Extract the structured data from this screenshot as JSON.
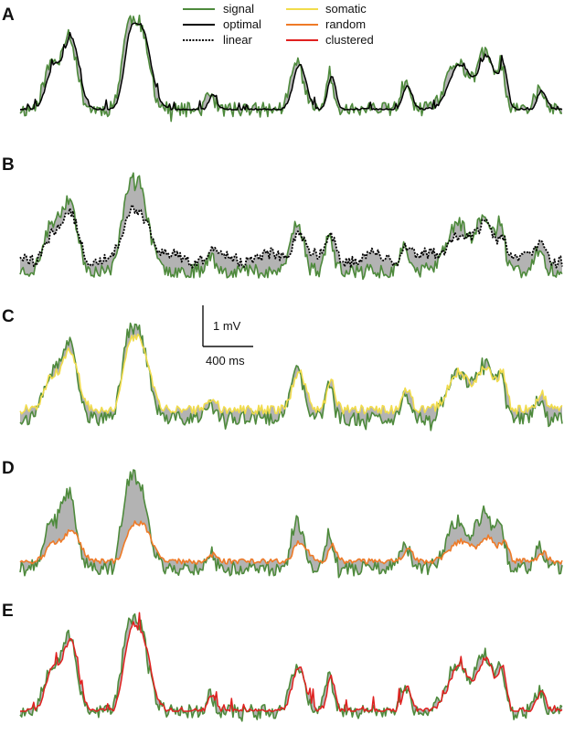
{
  "figure": {
    "colors": {
      "signal": "#4e8a3c",
      "optimal": "#000000",
      "linear": "#000000",
      "somatic": "#f1dc4c",
      "random": "#ef7a27",
      "clustered": "#e0201f",
      "fill": "#b3b3b3"
    },
    "legend": [
      {
        "label": "signal",
        "color": "#4e8a3c",
        "style": "solid"
      },
      {
        "label": "optimal",
        "color": "#000000",
        "style": "solid"
      },
      {
        "label": "linear",
        "color": "#000000",
        "style": "dotted"
      },
      {
        "label": "somatic",
        "color": "#f1dc4c",
        "style": "solid"
      },
      {
        "label": "random",
        "color": "#ef7a27",
        "style": "solid"
      },
      {
        "label": "clustered",
        "color": "#e0201f",
        "style": "solid"
      }
    ],
    "scalebar": {
      "v_label": "1 mV",
      "h_label": "400 ms"
    }
  },
  "chart_data": [
    {
      "type": "line",
      "panel": "A",
      "series": [
        "signal",
        "optimal"
      ],
      "shaded_difference": true
    },
    {
      "type": "line",
      "panel": "B",
      "series": [
        "signal",
        "linear"
      ],
      "shaded_difference": true
    },
    {
      "type": "line",
      "panel": "C",
      "series": [
        "signal",
        "somatic"
      ],
      "shaded_difference": true
    },
    {
      "type": "line",
      "panel": "D",
      "series": [
        "signal",
        "random"
      ],
      "shaded_difference": true
    },
    {
      "type": "line",
      "panel": "E",
      "series": [
        "signal",
        "clustered"
      ],
      "shaded_difference": true
    }
  ]
}
